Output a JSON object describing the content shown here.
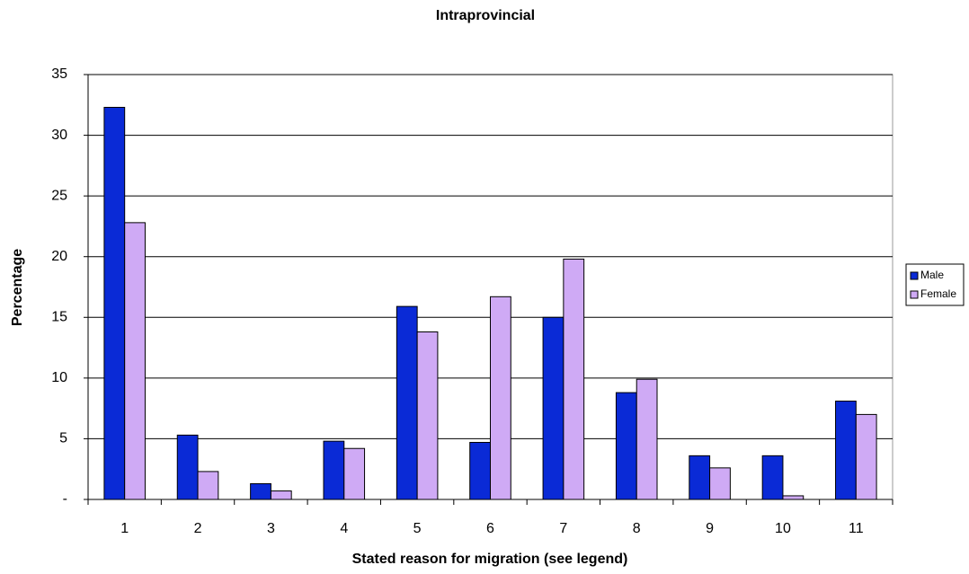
{
  "chart_data": {
    "type": "bar",
    "title": "Intraprovincial",
    "x_label": "Stated reason for migration (see legend)",
    "y_label": "Percentage",
    "categories": [
      "1",
      "2",
      "3",
      "4",
      "5",
      "6",
      "7",
      "8",
      "9",
      "10",
      "11"
    ],
    "series": [
      {
        "name": "Male",
        "color": "#0a2ad6",
        "values": [
          32.3,
          5.3,
          1.3,
          4.8,
          15.9,
          4.7,
          15.0,
          8.8,
          3.6,
          3.6,
          8.1
        ]
      },
      {
        "name": "Female",
        "color": "#cfaaf5",
        "values": [
          22.8,
          2.3,
          0.7,
          4.2,
          13.8,
          16.7,
          19.8,
          9.9,
          2.6,
          0.3,
          7.0
        ]
      }
    ],
    "ylim": [
      0,
      35
    ],
    "yticks": [
      {
        "value": 0,
        "label": "-"
      },
      5,
      10,
      15,
      20,
      25,
      30,
      35
    ],
    "grid": true,
    "legend": "right"
  }
}
